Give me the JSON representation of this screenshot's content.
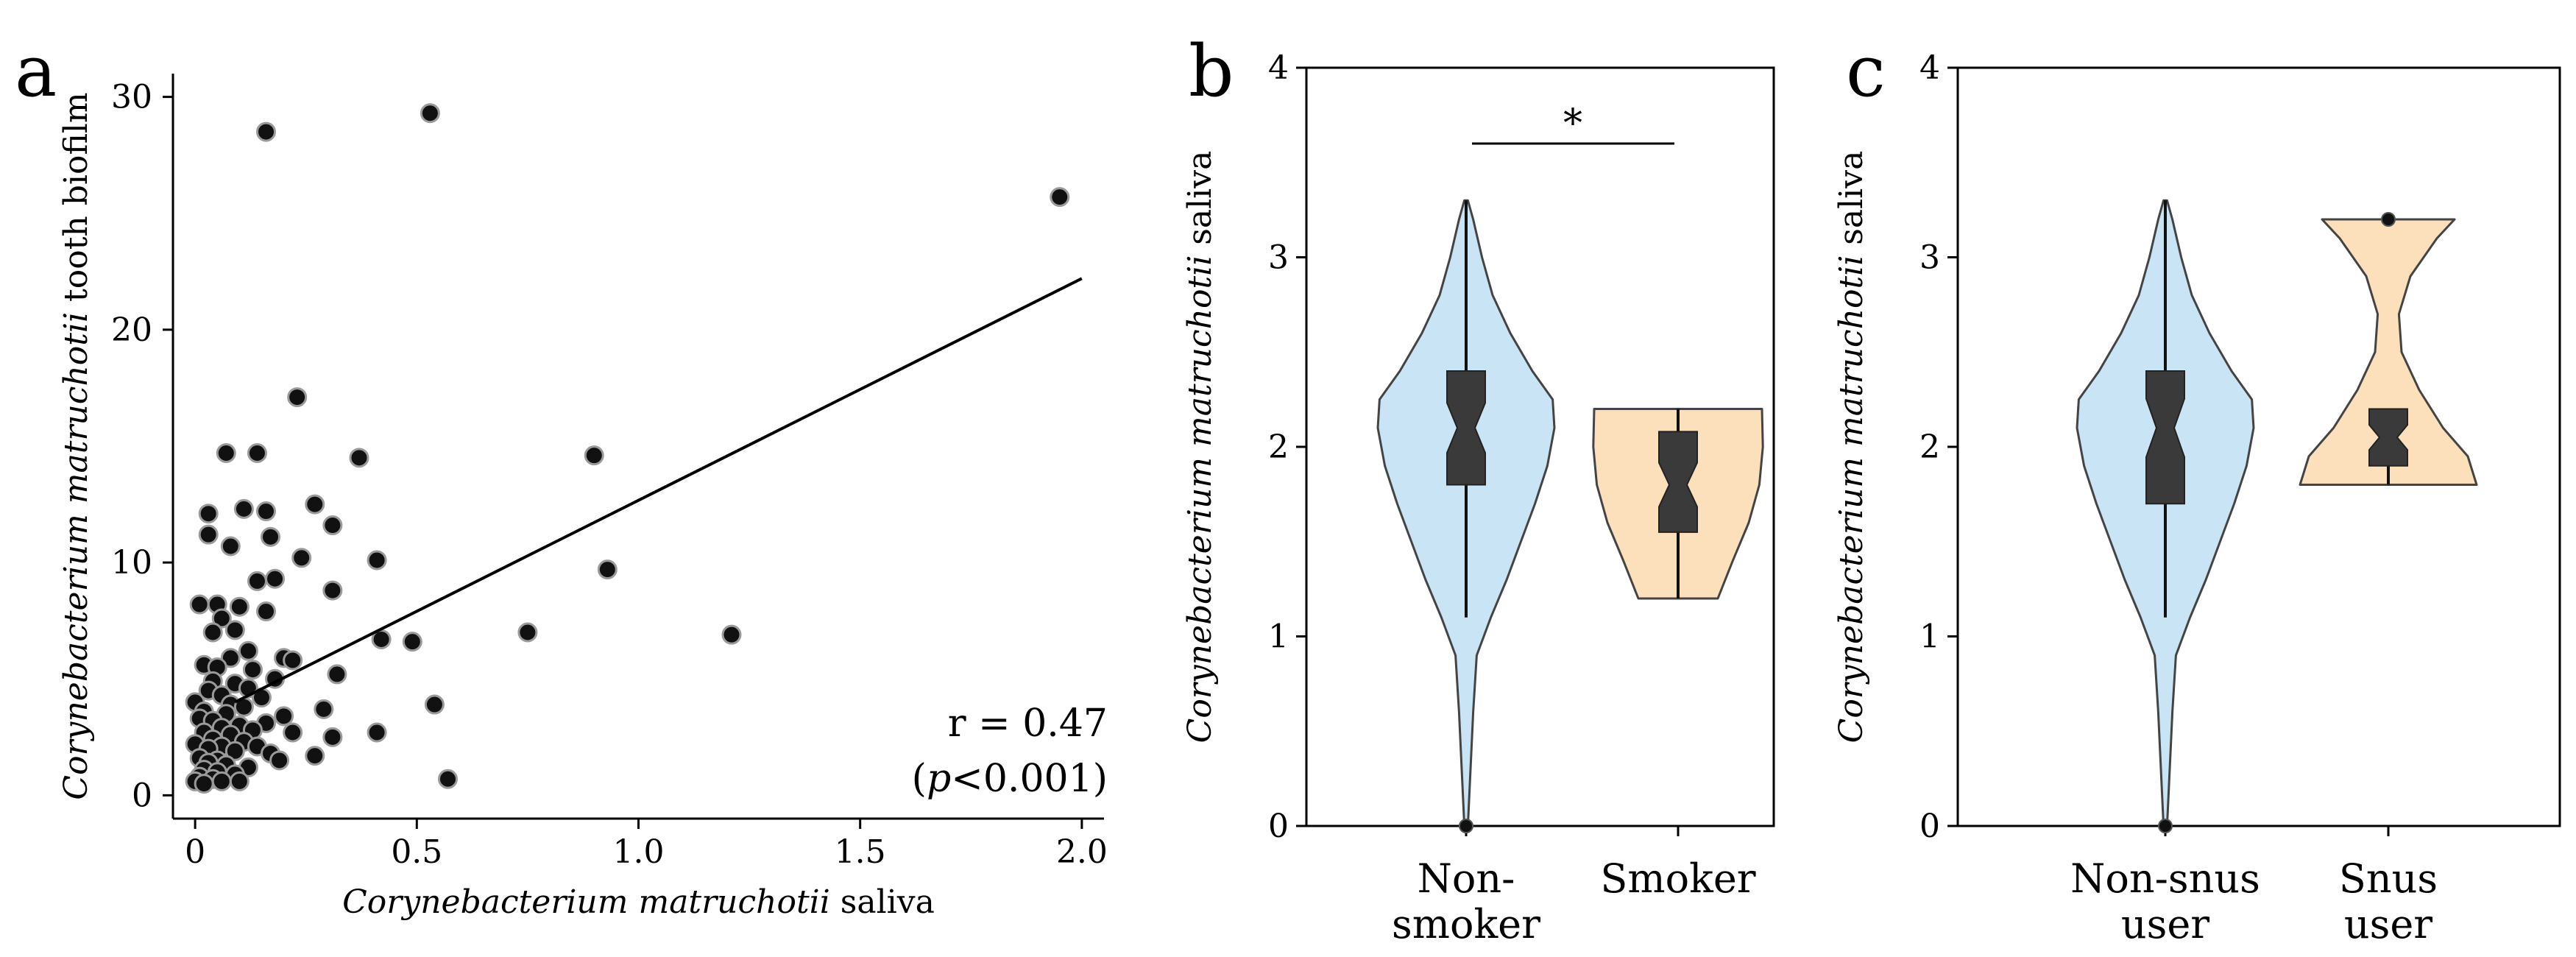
{
  "chart_data": [
    {
      "panel": "a",
      "type": "scatter",
      "xlabel_italic": "Corynebacterium matruchotii",
      "xlabel_rest": " saliva",
      "ylabel_italic": "Corynebacterium matruchotii",
      "ylabel_rest": " tooth biofilm",
      "xlim": [
        -0.05,
        2.05
      ],
      "ylim": [
        -1,
        31
      ],
      "xticks": [
        0,
        0.5,
        1.0,
        1.5,
        2.0
      ],
      "xtick_labels": [
        "0",
        "0.5",
        "1.0",
        "1.5",
        "2.0"
      ],
      "yticks": [
        0,
        10,
        20,
        30
      ],
      "ytick_labels": [
        "0",
        "10",
        "20",
        "30"
      ],
      "annotation_r": "r = 0.47",
      "annotation_p_open": "(",
      "annotation_p_italic": "p",
      "annotation_p_rest": "<0.001)",
      "trend_line": {
        "x": [
          0.09,
          2.0
        ],
        "y": [
          4.0,
          22.2
        ]
      },
      "points": [
        [
          0.16,
          28.5
        ],
        [
          0.53,
          29.3
        ],
        [
          1.95,
          25.7
        ],
        [
          0.23,
          17.1
        ],
        [
          0.07,
          14.7
        ],
        [
          0.14,
          14.7
        ],
        [
          0.9,
          14.6
        ],
        [
          0.37,
          14.5
        ],
        [
          0.11,
          12.3
        ],
        [
          0.03,
          12.1
        ],
        [
          0.16,
          12.2
        ],
        [
          0.27,
          12.5
        ],
        [
          0.31,
          11.6
        ],
        [
          0.03,
          11.2
        ],
        [
          0.17,
          11.1
        ],
        [
          0.08,
          10.7
        ],
        [
          0.24,
          10.2
        ],
        [
          0.41,
          10.1
        ],
        [
          0.93,
          9.7
        ],
        [
          0.14,
          9.2
        ],
        [
          0.18,
          9.3
        ],
        [
          0.31,
          8.8
        ],
        [
          0.01,
          8.2
        ],
        [
          0.05,
          8.2
        ],
        [
          0.1,
          8.1
        ],
        [
          0.16,
          7.9
        ],
        [
          0.06,
          7.6
        ],
        [
          0.09,
          7.1
        ],
        [
          0.04,
          7.0
        ],
        [
          0.75,
          7.0
        ],
        [
          1.21,
          6.9
        ],
        [
          0.42,
          6.7
        ],
        [
          0.49,
          6.6
        ],
        [
          0.12,
          6.2
        ],
        [
          0.08,
          5.9
        ],
        [
          0.2,
          5.9
        ],
        [
          0.22,
          5.8
        ],
        [
          0.02,
          5.6
        ],
        [
          0.05,
          5.5
        ],
        [
          0.13,
          5.4
        ],
        [
          0.32,
          5.2
        ],
        [
          0.18,
          5.0
        ],
        [
          0.04,
          4.9
        ],
        [
          0.09,
          4.8
        ],
        [
          0.12,
          4.6
        ],
        [
          0.03,
          4.5
        ],
        [
          0.06,
          4.3
        ],
        [
          0.15,
          4.2
        ],
        [
          0.0,
          4.0
        ],
        [
          0.08,
          3.9
        ],
        [
          0.11,
          3.8
        ],
        [
          0.54,
          3.9
        ],
        [
          0.29,
          3.7
        ],
        [
          0.02,
          3.6
        ],
        [
          0.07,
          3.5
        ],
        [
          0.2,
          3.4
        ],
        [
          0.01,
          3.3
        ],
        [
          0.04,
          3.2
        ],
        [
          0.16,
          3.1
        ],
        [
          0.1,
          3.0
        ],
        [
          0.06,
          2.9
        ],
        [
          0.13,
          2.8
        ],
        [
          0.02,
          2.7
        ],
        [
          0.22,
          2.7
        ],
        [
          0.41,
          2.7
        ],
        [
          0.08,
          2.6
        ],
        [
          0.31,
          2.5
        ],
        [
          0.04,
          2.4
        ],
        [
          0.11,
          2.3
        ],
        [
          0.0,
          2.2
        ],
        [
          0.06,
          2.1
        ],
        [
          0.14,
          2.1
        ],
        [
          0.03,
          2.0
        ],
        [
          0.09,
          1.9
        ],
        [
          0.17,
          1.8
        ],
        [
          0.27,
          1.7
        ],
        [
          0.01,
          1.6
        ],
        [
          0.05,
          1.5
        ],
        [
          0.19,
          1.5
        ],
        [
          0.03,
          1.4
        ],
        [
          0.07,
          1.3
        ],
        [
          0.12,
          1.2
        ],
        [
          0.02,
          1.1
        ],
        [
          0.05,
          1.0
        ],
        [
          0.09,
          0.9
        ],
        [
          0.01,
          0.8
        ],
        [
          0.04,
          0.7
        ],
        [
          0.57,
          0.7
        ],
        [
          0.0,
          0.6
        ],
        [
          0.06,
          0.6
        ],
        [
          0.1,
          0.6
        ],
        [
          0.02,
          0.5
        ]
      ]
    },
    {
      "panel": "b",
      "type": "violin",
      "ylabel_italic": "Corynebacterium matruchotii",
      "ylabel_rest": " saliva",
      "ylim": [
        0,
        4
      ],
      "yticks": [
        0,
        1,
        2,
        3,
        4
      ],
      "ytick_labels": [
        "0",
        "1",
        "2",
        "3",
        "4"
      ],
      "significance": "*",
      "groups": [
        {
          "label_lines": [
            "Non-",
            "smoker"
          ],
          "fill": "#c9e4f5",
          "density": [
            [
              0.0,
              0.02
            ],
            [
              0.3,
              0.05
            ],
            [
              0.6,
              0.08
            ],
            [
              0.9,
              0.12
            ],
            [
              1.1,
              0.28
            ],
            [
              1.3,
              0.46
            ],
            [
              1.5,
              0.62
            ],
            [
              1.7,
              0.78
            ],
            [
              1.9,
              0.92
            ],
            [
              2.1,
              1.0
            ],
            [
              2.25,
              0.98
            ],
            [
              2.4,
              0.75
            ],
            [
              2.6,
              0.5
            ],
            [
              2.8,
              0.3
            ],
            [
              3.0,
              0.18
            ],
            [
              3.2,
              0.08
            ],
            [
              3.3,
              0.02
            ]
          ],
          "median": 2.1,
          "q1": 1.8,
          "q3": 2.4,
          "whisker_low": 1.1,
          "whisker_high": 3.3,
          "outliers": [
            0.0
          ]
        },
        {
          "label_lines": [
            "Smoker"
          ],
          "fill": "#fbe0bb",
          "density": [
            [
              1.2,
              0.45
            ],
            [
              1.4,
              0.62
            ],
            [
              1.6,
              0.8
            ],
            [
              1.8,
              0.92
            ],
            [
              2.0,
              0.96
            ],
            [
              2.2,
              0.95
            ]
          ],
          "median": 1.8,
          "q1": 1.55,
          "q3": 2.08,
          "whisker_low": 1.2,
          "whisker_high": 2.2,
          "outliers": []
        }
      ]
    },
    {
      "panel": "c",
      "type": "violin",
      "ylabel_italic": "Corynebacterium matruchotii",
      "ylabel_rest": " saliva",
      "ylim": [
        0,
        4
      ],
      "yticks": [
        0,
        1,
        2,
        3,
        4
      ],
      "ytick_labels": [
        "0",
        "1",
        "2",
        "3",
        "4"
      ],
      "groups": [
        {
          "label_lines": [
            "Non-snus",
            "user"
          ],
          "fill": "#c9e4f5",
          "density": [
            [
              0.0,
              0.02
            ],
            [
              0.3,
              0.05
            ],
            [
              0.6,
              0.08
            ],
            [
              0.9,
              0.12
            ],
            [
              1.1,
              0.28
            ],
            [
              1.3,
              0.46
            ],
            [
              1.5,
              0.62
            ],
            [
              1.7,
              0.78
            ],
            [
              1.9,
              0.92
            ],
            [
              2.1,
              1.0
            ],
            [
              2.25,
              0.98
            ],
            [
              2.4,
              0.75
            ],
            [
              2.6,
              0.5
            ],
            [
              2.8,
              0.3
            ],
            [
              3.0,
              0.18
            ],
            [
              3.2,
              0.08
            ],
            [
              3.3,
              0.02
            ]
          ],
          "median": 2.1,
          "q1": 1.7,
          "q3": 2.4,
          "whisker_low": 1.1,
          "whisker_high": 3.3,
          "outliers": [
            0.0
          ]
        },
        {
          "label_lines": [
            "Snus",
            "user"
          ],
          "fill": "#fbe0bb",
          "density": [
            [
              1.8,
              1.0
            ],
            [
              1.95,
              0.9
            ],
            [
              2.1,
              0.62
            ],
            [
              2.3,
              0.35
            ],
            [
              2.5,
              0.15
            ],
            [
              2.7,
              0.12
            ],
            [
              2.9,
              0.25
            ],
            [
              3.1,
              0.55
            ],
            [
              3.2,
              0.75
            ]
          ],
          "median": 2.05,
          "q1": 1.9,
          "q3": 2.2,
          "whisker_low": 1.8,
          "whisker_high": 2.2,
          "outliers": [
            3.2
          ]
        }
      ]
    }
  ]
}
